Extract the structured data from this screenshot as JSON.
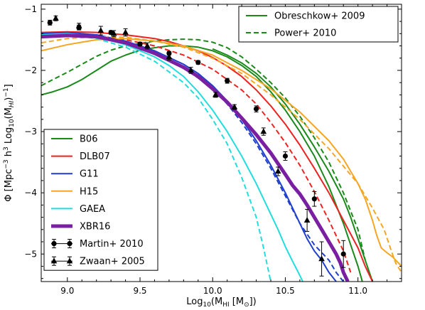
{
  "chart_data": {
    "type": "line",
    "xlabel_html": "Log<tspan font-size='9' dy='3'>10</tspan><tspan dy='-3'>(M</tspan><tspan font-size='9' dy='3'>HI</tspan><tspan dy='-3'> [M</tspan><tspan font-size='9' dy='3'>⊙</tspan><tspan dy='-3'>])</tspan>",
    "ylabel_html": "Φ [Mpc<tspan font-size='9' dy='-5'>−3</tspan><tspan dy='5'> h</tspan><tspan font-size='9' dy='-5'>3</tspan><tspan dy='5'> Log</tspan><tspan font-size='9' dy='3'>10</tspan><tspan dy='-3'>(M</tspan><tspan font-size='9' dy='3' font-style='italic'>HI</tspan><tspan dy='-3'>)</tspan><tspan font-size='9' dy='-5'>−1</tspan><tspan dy='5'>]</tspan>",
    "xlim": [
      8.82,
      11.3
    ],
    "ylim": [
      -5.45,
      -0.92
    ],
    "xticks": [
      9.0,
      9.5,
      10.0,
      10.5,
      11.0
    ],
    "xtick_labels": [
      "9.0",
      "9.5",
      "10.0",
      "10.5",
      "11.0"
    ],
    "yticks": [
      -1,
      -2,
      -3,
      -4,
      -5
    ],
    "ytick_labels": [
      "−1",
      "−2",
      "−3",
      "−4",
      "−5"
    ],
    "series": [
      {
        "name": "Obreschkow+ 2009",
        "color": "#1a8a1a",
        "style": "solid",
        "width": 2,
        "x": [
          8.82,
          8.9,
          9.0,
          9.1,
          9.2,
          9.3,
          9.4,
          9.5,
          9.6,
          9.7,
          9.8,
          9.9,
          10.0,
          10.1,
          10.2,
          10.3,
          10.4,
          10.5,
          10.6,
          10.7,
          10.8,
          10.9,
          10.95,
          11.0,
          11.03
        ],
        "y": [
          -2.4,
          -2.35,
          -2.27,
          -2.15,
          -2.0,
          -1.85,
          -1.75,
          -1.67,
          -1.63,
          -1.6,
          -1.6,
          -1.62,
          -1.68,
          -1.78,
          -1.92,
          -2.1,
          -2.35,
          -2.65,
          -3.0,
          -3.4,
          -3.9,
          -4.5,
          -4.85,
          -5.2,
          -5.45
        ]
      },
      {
        "name": "Power+ 2010",
        "color": "#1a8a1a",
        "style": "dashed",
        "width": 2,
        "x": [
          8.82,
          8.9,
          9.0,
          9.1,
          9.2,
          9.3,
          9.4,
          9.5,
          9.6,
          9.7,
          9.8,
          9.9,
          10.0,
          10.1,
          10.2,
          10.3,
          10.4,
          10.5,
          10.6,
          10.7,
          10.8,
          10.9,
          11.0,
          11.05
        ],
        "y": [
          -2.25,
          -2.15,
          -2.03,
          -1.9,
          -1.77,
          -1.67,
          -1.6,
          -1.56,
          -1.52,
          -1.5,
          -1.49,
          -1.5,
          -1.54,
          -1.63,
          -1.78,
          -1.98,
          -2.2,
          -2.45,
          -2.75,
          -3.1,
          -3.5,
          -4.0,
          -4.6,
          -5.1
        ]
      },
      {
        "name": "B06",
        "color": "#1a8a1a",
        "style": "solid",
        "width": 2,
        "x": [
          10.0,
          10.1,
          10.2,
          10.3,
          10.4,
          10.5,
          10.6,
          10.7,
          10.8,
          10.9,
          10.95,
          11.0,
          11.05,
          11.1
        ],
        "y": [
          -1.65,
          -1.75,
          -1.88,
          -2.05,
          -2.27,
          -2.55,
          -2.88,
          -3.25,
          -3.65,
          -4.1,
          -4.4,
          -4.75,
          -5.1,
          -5.45
        ]
      },
      {
        "name": "DLB07",
        "color": "#ee2222",
        "style": "solid",
        "width": 2,
        "x": [
          8.82,
          9.0,
          9.2,
          9.4,
          9.6,
          9.7,
          9.8,
          9.9,
          10.0,
          10.1,
          10.2,
          10.3,
          10.4,
          10.5,
          10.6,
          10.7,
          10.8,
          10.9,
          11.0,
          11.05,
          11.1
        ],
        "y": [
          -1.38,
          -1.37,
          -1.38,
          -1.42,
          -1.48,
          -1.53,
          -1.6,
          -1.68,
          -1.79,
          -1.93,
          -2.1,
          -2.32,
          -2.58,
          -2.88,
          -3.22,
          -3.6,
          -4.0,
          -4.45,
          -4.9,
          -5.2,
          -5.45
        ]
      },
      {
        "name": "DLB07 (dashed)",
        "color": "#ee2222",
        "style": "dashed",
        "width": 2,
        "x": [
          8.82,
          9.0,
          9.2,
          9.4,
          9.6,
          9.8,
          10.0,
          10.2,
          10.3,
          10.4,
          10.5,
          10.6,
          10.7,
          10.8,
          10.9,
          10.95
        ],
        "y": [
          -1.45,
          -1.43,
          -1.44,
          -1.5,
          -1.6,
          -1.75,
          -1.98,
          -2.32,
          -2.55,
          -2.85,
          -3.18,
          -3.55,
          -3.98,
          -4.45,
          -4.95,
          -5.3
        ]
      },
      {
        "name": "G11",
        "color": "#1f3fcc",
        "style": "solid",
        "width": 2,
        "x": [
          8.82,
          9.0,
          9.2,
          9.4,
          9.6,
          9.8,
          9.9,
          10.0,
          10.1,
          10.2,
          10.3,
          10.4,
          10.5,
          10.6,
          10.65,
          10.7,
          10.75,
          10.8,
          10.85
        ],
        "y": [
          -1.4,
          -1.38,
          -1.42,
          -1.52,
          -1.68,
          -1.9,
          -2.05,
          -2.25,
          -2.5,
          -2.8,
          -3.15,
          -3.55,
          -4.0,
          -4.5,
          -4.75,
          -4.95,
          -5.1,
          -5.3,
          -5.45
        ]
      },
      {
        "name": "G11 (dashed)",
        "color": "#1f3fcc",
        "style": "dashed",
        "width": 2,
        "x": [
          8.82,
          9.0,
          9.2,
          9.4,
          9.6,
          9.8,
          10.0,
          10.1,
          10.2,
          10.3,
          10.4,
          10.5,
          10.6,
          10.7,
          10.8,
          10.85,
          10.9
        ],
        "y": [
          -1.45,
          -1.4,
          -1.42,
          -1.52,
          -1.7,
          -1.95,
          -2.3,
          -2.55,
          -2.85,
          -3.2,
          -3.6,
          -4.05,
          -4.5,
          -4.85,
          -5.1,
          -5.3,
          -5.45
        ]
      },
      {
        "name": "H15",
        "color": "#f5a623",
        "style": "solid",
        "width": 2,
        "x": [
          8.82,
          9.0,
          9.2,
          9.4,
          9.6,
          9.8,
          10.0,
          10.2,
          10.4,
          10.6,
          10.8,
          10.9,
          11.0,
          11.05,
          11.1,
          11.13,
          11.16,
          11.2,
          11.24,
          11.28,
          11.3
        ],
        "y": [
          -1.68,
          -1.58,
          -1.5,
          -1.48,
          -1.52,
          -1.6,
          -1.75,
          -2.0,
          -2.3,
          -2.68,
          -3.15,
          -3.45,
          -3.85,
          -4.1,
          -4.45,
          -4.7,
          -4.9,
          -4.98,
          -5.05,
          -5.15,
          -5.2
        ]
      },
      {
        "name": "H15 (dashed)",
        "color": "#f5a623",
        "style": "dashed",
        "width": 2,
        "x": [
          8.82,
          9.0,
          9.2,
          9.4,
          9.6,
          9.8,
          10.0,
          10.2,
          10.4,
          10.6,
          10.8,
          11.0,
          11.1,
          11.18,
          11.23,
          11.26,
          11.3
        ],
        "y": [
          -1.55,
          -1.48,
          -1.45,
          -1.46,
          -1.52,
          -1.62,
          -1.8,
          -2.05,
          -2.4,
          -2.8,
          -3.28,
          -3.85,
          -4.25,
          -4.6,
          -4.95,
          -5.15,
          -5.3
        ]
      },
      {
        "name": "GAEA",
        "color": "#22dddd",
        "style": "solid",
        "width": 2,
        "x": [
          8.82,
          9.0,
          9.2,
          9.4,
          9.6,
          9.7,
          9.8,
          9.9,
          10.0,
          10.1,
          10.2,
          10.3,
          10.4,
          10.45,
          10.5,
          10.55,
          10.6,
          10.62
        ],
        "y": [
          -1.42,
          -1.4,
          -1.45,
          -1.58,
          -1.78,
          -1.92,
          -2.1,
          -2.35,
          -2.65,
          -3.0,
          -3.4,
          -3.85,
          -4.35,
          -4.6,
          -4.88,
          -5.12,
          -5.35,
          -5.45
        ]
      },
      {
        "name": "GAEA (dashed)",
        "color": "#22dddd",
        "style": "dashed",
        "width": 2,
        "x": [
          8.82,
          9.0,
          9.2,
          9.4,
          9.6,
          9.8,
          9.9,
          10.0,
          10.1,
          10.2,
          10.3,
          10.35,
          10.4
        ],
        "y": [
          -1.45,
          -1.42,
          -1.48,
          -1.62,
          -1.85,
          -2.2,
          -2.45,
          -2.8,
          -3.2,
          -3.75,
          -4.4,
          -4.9,
          -5.45
        ]
      },
      {
        "name": "XBR16",
        "color": "#7b1fa2",
        "style": "solid",
        "width": 5,
        "x": [
          8.82,
          9.0,
          9.2,
          9.4,
          9.6,
          9.8,
          9.9,
          10.0,
          10.1,
          10.2,
          10.3,
          10.4,
          10.5,
          10.55,
          10.6,
          10.65,
          10.7,
          10.75,
          10.8,
          10.85,
          10.88,
          10.9,
          10.93
        ],
        "y": [
          -1.45,
          -1.43,
          -1.45,
          -1.55,
          -1.72,
          -1.95,
          -2.1,
          -2.3,
          -2.52,
          -2.78,
          -3.05,
          -3.35,
          -3.7,
          -3.88,
          -4.02,
          -4.2,
          -4.4,
          -4.6,
          -4.8,
          -5.0,
          -5.15,
          -5.3,
          -5.45
        ]
      }
    ],
    "points": [
      {
        "name": "Martin+ 2010",
        "marker": "circle",
        "x": [
          8.88,
          9.08,
          9.3,
          9.5,
          9.7,
          9.9,
          10.1,
          10.3,
          10.5,
          10.7,
          10.9
        ],
        "y": [
          -1.22,
          -1.3,
          -1.38,
          -1.57,
          -1.72,
          -1.87,
          -2.17,
          -2.63,
          -3.4,
          -4.1,
          -5.0
        ],
        "err": [
          0.04,
          0.04,
          0.03,
          0.03,
          0.03,
          0.03,
          0.04,
          0.05,
          0.07,
          0.12,
          0.22
        ]
      },
      {
        "name": "Zwaan+ 2005",
        "marker": "triangle",
        "x": [
          8.92,
          9.08,
          9.23,
          9.32,
          9.4,
          9.55,
          9.7,
          9.85,
          10.02,
          10.15,
          10.35,
          10.45,
          10.65,
          10.75
        ],
        "y": [
          -1.15,
          -1.28,
          -1.35,
          -1.4,
          -1.38,
          -1.6,
          -1.78,
          -2.0,
          -2.4,
          -2.6,
          -3.0,
          -3.65,
          -4.45,
          -5.08
        ],
        "err": [
          0.04,
          0.05,
          0.07,
          0.05,
          0.06,
          0.05,
          0.05,
          0.05,
          0.04,
          0.04,
          0.06,
          0.07,
          0.18,
          0.28
        ]
      }
    ],
    "legend_top": {
      "placement": "top-right",
      "entries": [
        {
          "label": "Obreschkow+ 2009",
          "color": "#1a8a1a",
          "style": "solid"
        },
        {
          "label": "Power+ 2010",
          "color": "#1a8a1a",
          "style": "dashed"
        }
      ]
    },
    "legend_bottom": {
      "placement": "bottom-left",
      "entries": [
        {
          "label": "B06",
          "color": "#1a8a1a",
          "style": "solid",
          "width": 2
        },
        {
          "label": "DLB07",
          "color": "#ee2222",
          "style": "solid",
          "width": 2
        },
        {
          "label": "G11",
          "color": "#1f3fcc",
          "style": "solid",
          "width": 2
        },
        {
          "label": "H15",
          "color": "#f5a623",
          "style": "solid",
          "width": 2
        },
        {
          "label": "GAEA",
          "color": "#22dddd",
          "style": "solid",
          "width": 2
        },
        {
          "label": "XBR16",
          "color": "#7b1fa2",
          "style": "solid",
          "width": 5
        },
        {
          "label": "Martin+ 2010",
          "marker": "circle"
        },
        {
          "label": "Zwaan+ 2005",
          "marker": "triangle"
        }
      ]
    }
  }
}
